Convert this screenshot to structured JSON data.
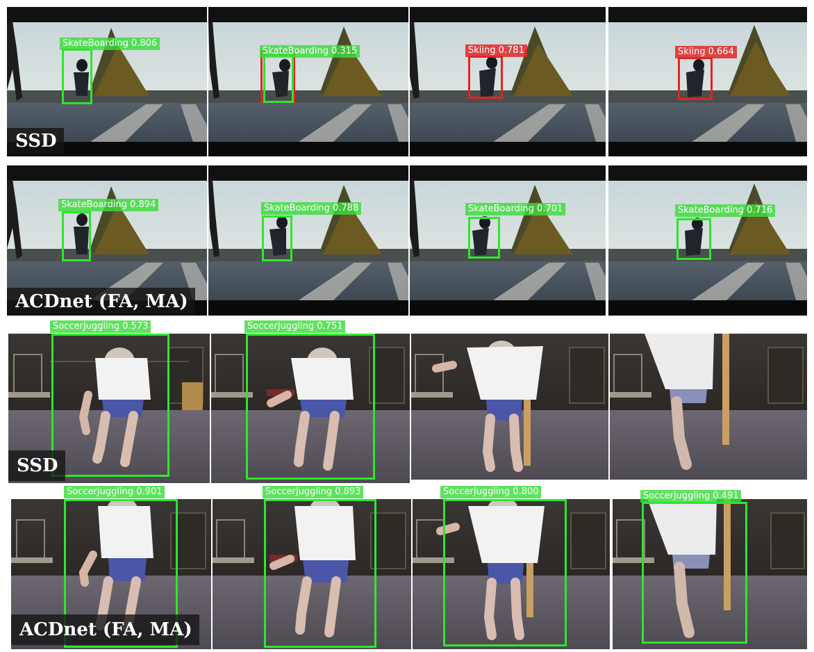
{
  "rows": [
    {
      "method": "SSD",
      "frames": [
        {
          "label": "SkateBoarding 0.806",
          "color": "#2ee62e"
        },
        {
          "label": "SkateBoarding 0.315",
          "color": "#2ee62e"
        },
        {
          "label": "Skiing 0.781",
          "color": "#e32323"
        },
        {
          "label": "Skiing 0.664",
          "color": "#e32323"
        }
      ]
    },
    {
      "method": "ACDnet (FA, MA)",
      "frames": [
        {
          "label": "SkateBoarding 0.894",
          "color": "#2ee62e"
        },
        {
          "label": "SkateBoarding 0.788",
          "color": "#2ee62e"
        },
        {
          "label": "SkateBoarding 0.701",
          "color": "#2ee62e"
        },
        {
          "label": "SkateBoarding 0.716",
          "color": "#2ee62e"
        }
      ]
    },
    {
      "method": "SSD",
      "frames": [
        {
          "label": "SoccerJuggling 0.573",
          "color": "#2ee62e"
        },
        {
          "label": "SoccerJuggling 0.751",
          "color": "#2ee62e"
        },
        {
          "label": "",
          "color": ""
        },
        {
          "label": "",
          "color": ""
        }
      ]
    },
    {
      "method": "ACDnet (FA, MA)",
      "frames": [
        {
          "label": "SoccerJuggling 0.901",
          "color": "#2ee62e"
        },
        {
          "label": "SoccerJuggling 0.893",
          "color": "#2ee62e"
        },
        {
          "label": "SoccerJuggling 0.800",
          "color": "#2ee62e"
        },
        {
          "label": "SoccerJuggling 0.491",
          "color": "#2ee62e"
        }
      ]
    }
  ]
}
